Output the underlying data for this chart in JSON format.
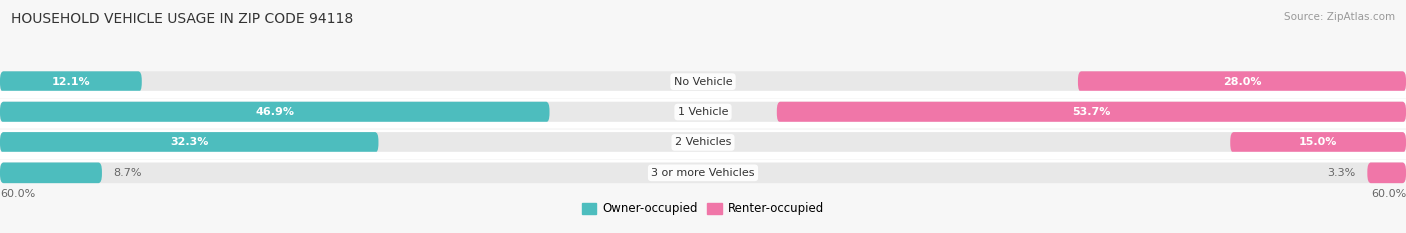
{
  "title": "HOUSEHOLD VEHICLE USAGE IN ZIP CODE 94118",
  "source": "Source: ZipAtlas.com",
  "categories": [
    "No Vehicle",
    "1 Vehicle",
    "2 Vehicles",
    "3 or more Vehicles"
  ],
  "owner_values": [
    12.1,
    46.9,
    32.3,
    8.7
  ],
  "renter_values": [
    28.0,
    53.7,
    15.0,
    3.3
  ],
  "owner_color": "#4dbdbe",
  "renter_color": "#f076a8",
  "owner_color_light": "#a8dfe0",
  "renter_color_light": "#f9b8d4",
  "max_scale": 60.0,
  "axis_label": "60.0%",
  "bg_color": "#f7f7f7",
  "bar_bg_color": "#e8e8e8",
  "row_sep_color": "#ffffff",
  "title_fontsize": 10,
  "source_fontsize": 7.5,
  "label_fontsize": 8,
  "category_fontsize": 8,
  "legend_fontsize": 8.5,
  "bar_height": 0.68,
  "label_color": "#666666"
}
